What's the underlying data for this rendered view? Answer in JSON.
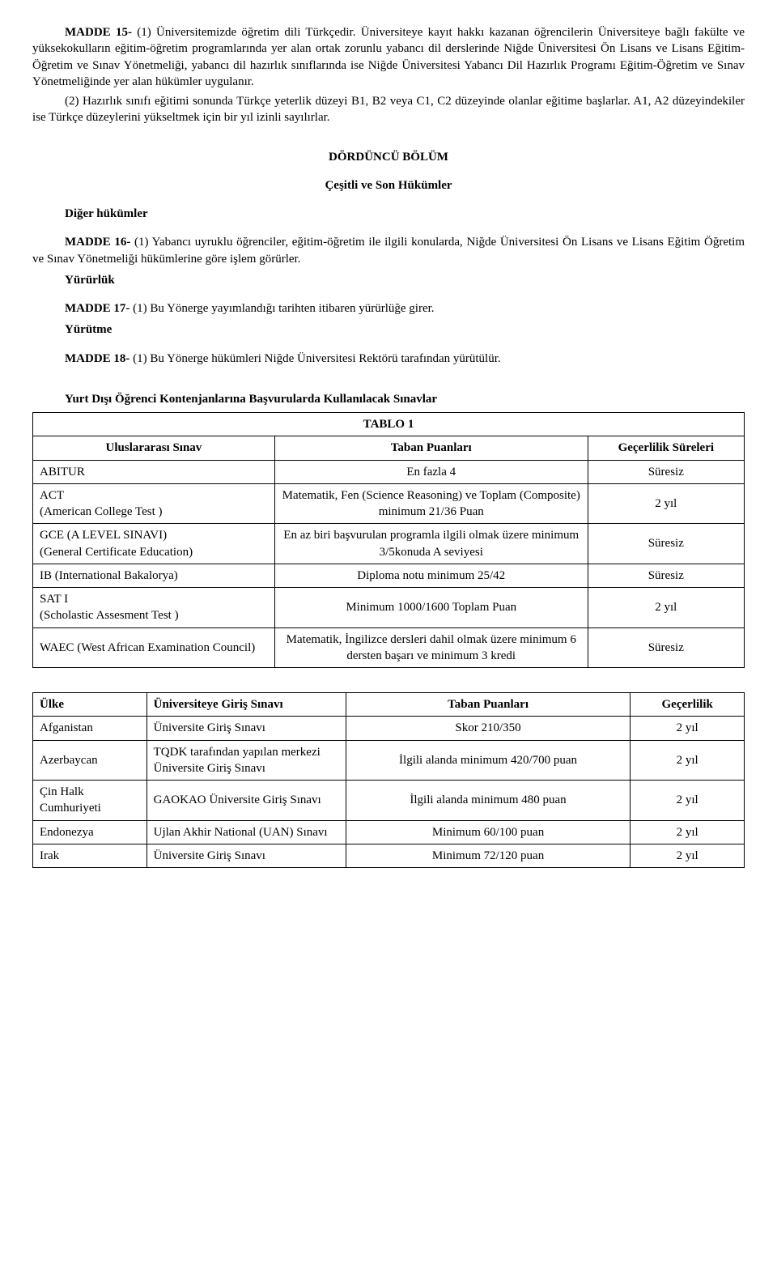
{
  "p1_bold": "MADDE 15-",
  "p1_rest": " (1) Üniversitemizde öğretim dili Türkçedir. Üniversiteye kayıt hakkı kazanan öğrencilerin Üniversiteye bağlı fakülte ve yüksekokulların eğitim-öğretim programlarında yer alan ortak zorunlu yabancı dil derslerinde Niğde Üniversitesi Ön Lisans ve Lisans Eğitim-Öğretim ve Sınav Yönetmeliği, yabancı dil hazırlık sınıflarında ise Niğde Üniversitesi Yabancı Dil Hazırlık Programı Eğitim-Öğretim ve Sınav Yönetmeliğinde yer alan hükümler uygulanır.",
  "p2": "(2) Hazırlık sınıfı eğitimi sonunda Türkçe yeterlik düzeyi B1, B2 veya C1, C2 düzeyinde olanlar eğitime başlarlar. A1, A2 düzeyindekiler ise Türkçe düzeylerini yükseltmek için bir yıl izinli sayılırlar.",
  "bolum_title": "DÖRDÜNCÜ BÖLÜM",
  "bolum_sub": "Çeşitli ve Son Hükümler",
  "h_diger": "Diğer hükümler",
  "m16_bold": "MADDE 16-",
  "m16_rest": " (1) Yabancı uyruklu öğrenciler, eğitim-öğretim ile ilgili konularda, Niğde Üniversitesi Ön Lisans ve Lisans Eğitim Öğretim ve Sınav Yönetmeliği hükümlerine göre işlem görürler.",
  "h_yururluk": "Yürürlük",
  "m17_bold": "MADDE 17-",
  "m17_rest": " (1) Bu Yönerge yayımlandığı tarihten itibaren yürürlüğe girer.",
  "h_yurutme": "Yürütme",
  "m18_bold": "MADDE 18-",
  "m18_rest": " (1) Bu Yönerge hükümleri Niğde Üniversitesi Rektörü tarafından yürütülür.",
  "tbl1_caption": "Yurt Dışı Öğrenci Kontenjanlarına Başvurularda Kullanılacak Sınavlar",
  "tbl1_label": "TABLO 1",
  "tbl1_headers": {
    "c1": "Uluslararası Sınav",
    "c2": "Taban Puanları",
    "c3": "Geçerlilik Süreleri"
  },
  "tbl1_rows": [
    {
      "exam": "ABITUR",
      "score": "En fazla 4",
      "valid": "Süresiz"
    },
    {
      "exam": "ACT\n(American College Test )",
      "score": "Matematik, Fen (Science Reasoning) ve Toplam (Composite) minimum 21/36 Puan",
      "valid": "2 yıl"
    },
    {
      "exam": "GCE (A LEVEL SINAVI)\n(General Certificate Education)",
      "score": "En az biri başvurulan programla ilgili olmak üzere minimum 3/5konuda A seviyesi",
      "valid": "Süresiz"
    },
    {
      "exam": "IB (International Bakalorya)",
      "score": "Diploma notu minimum 25/42",
      "valid": "Süresiz"
    },
    {
      "exam": "SAT I\n(Scholastic Assesment Test )",
      "score": "Minimum 1000/1600 Toplam Puan",
      "valid": "2 yıl"
    },
    {
      "exam": "WAEC (West African Examination Council)",
      "score": "Matematik, İngilizce dersleri dahil olmak üzere minimum 6 dersten başarı ve minimum 3 kredi",
      "valid": "Süresiz"
    }
  ],
  "tbl2_headers": {
    "c1": "Ülke",
    "c2": "Üniversiteye Giriş Sınavı",
    "c3": "Taban Puanları",
    "c4": "Geçerlilik"
  },
  "tbl2_rows": [
    {
      "country": "Afganistan",
      "exam": "Üniversite Giriş Sınavı",
      "score": "Skor 210/350",
      "valid": "2 yıl"
    },
    {
      "country": "Azerbaycan",
      "exam": "TQDK tarafından yapılan merkezi Üniversite Giriş Sınavı",
      "score": "İlgili alanda minimum 420/700 puan",
      "valid": "2 yıl"
    },
    {
      "country": "Çin Halk Cumhuriyeti",
      "exam": "GAOKAO Üniversite Giriş Sınavı",
      "score": "İlgili alanda minimum 480 puan",
      "valid": "2 yıl"
    },
    {
      "country": "Endonezya",
      "exam": "Ujlan Akhir National (UAN) Sınavı",
      "score": "Minimum 60/100 puan",
      "valid": "2 yıl"
    },
    {
      "country": "Irak",
      "exam": "Üniversite Giriş Sınavı",
      "score": "Minimum 72/120 puan",
      "valid": "2 yıl"
    }
  ]
}
